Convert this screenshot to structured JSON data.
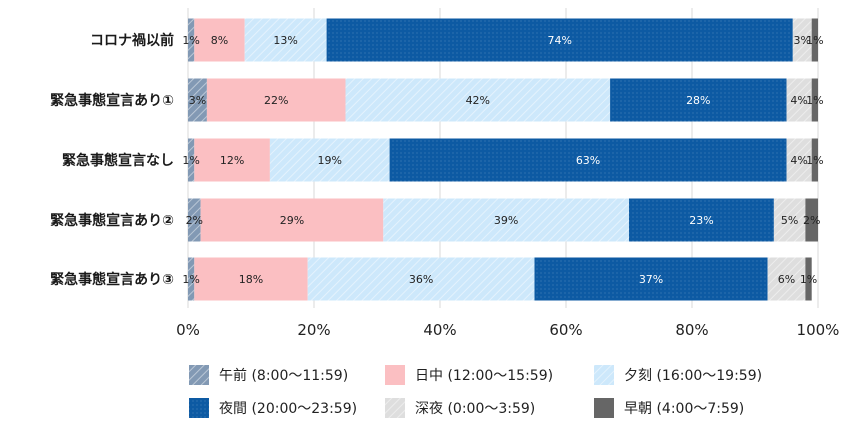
{
  "chart_data": {
    "type": "bar",
    "orientation": "horizontal",
    "stacked": true,
    "categories": [
      "コロナ禍以前",
      "緊急事態宣言あり①",
      "緊急事態宣言なし",
      "緊急事態宣言あり②",
      "緊急事態宣言あり③"
    ],
    "series": [
      {
        "name": "午前 (8:00～11:59)",
        "color": "#8299b4",
        "values": [
          1,
          3,
          1,
          2,
          1
        ],
        "labels": [
          "1%",
          "3%",
          "1%",
          "2%",
          "1%"
        ]
      },
      {
        "name": "日中 (12:00～15:59)",
        "color": "#fbbfc2",
        "values": [
          8,
          22,
          12,
          29,
          18
        ],
        "labels": [
          "8%",
          "22%",
          "12%",
          "29%",
          "18%"
        ]
      },
      {
        "name": "夕刻 (16:00～19:59)",
        "color": "#cde8fb",
        "values": [
          13,
          42,
          19,
          39,
          36
        ],
        "labels": [
          "13%",
          "42%",
          "19%",
          "39%",
          "36%"
        ]
      },
      {
        "name": "夜間 (20:00～23:59)",
        "color": "#0d5aa3",
        "values": [
          74,
          28,
          63,
          23,
          37
        ],
        "labels": [
          "74%",
          "28%",
          "63%",
          "23%",
          "37%"
        ]
      },
      {
        "name": "深夜 (0:00～3:59)",
        "color": "#dedede",
        "values": [
          3,
          4,
          4,
          5,
          6
        ],
        "labels": [
          "3%",
          "4%",
          "4%",
          "5%",
          "6%"
        ]
      },
      {
        "name": "早朝 (4:00～7:59)",
        "color": "#666666",
        "values": [
          1,
          1,
          1,
          2,
          1
        ],
        "labels": [
          "1%",
          "1%",
          "1%",
          "2%",
          "1%"
        ]
      }
    ],
    "xlim": [
      0,
      100
    ],
    "x_ticks": [
      "0%",
      "20%",
      "40%",
      "60%",
      "80%",
      "100%"
    ],
    "grid": true,
    "legend_position": "bottom"
  }
}
